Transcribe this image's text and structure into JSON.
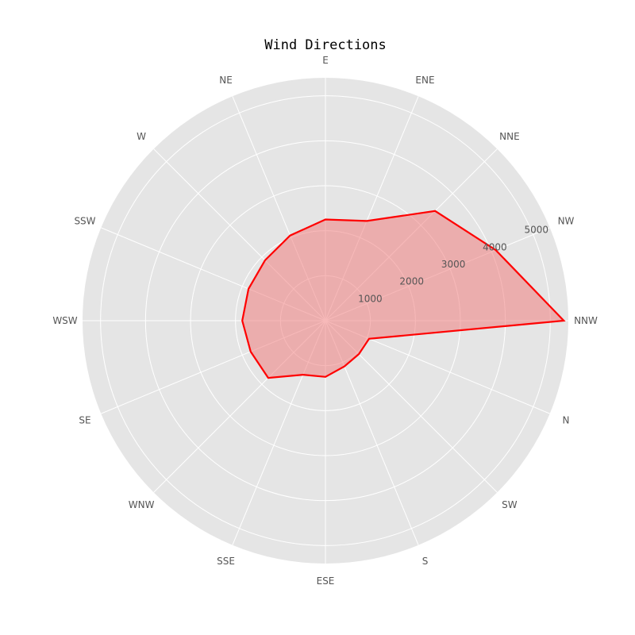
{
  "chart_data": {
    "type": "radar",
    "title": "Wind Directions",
    "categories": [
      "NNW",
      "NW",
      "NNE",
      "ENE",
      "E",
      "NE",
      "W",
      "SSW",
      "WSW",
      "SE",
      "WNW",
      "SSE",
      "ESE",
      "S",
      "SW",
      "N"
    ],
    "series": [
      {
        "values": [
          5300,
          4100,
          3450,
          2400,
          2250,
          2050,
          1900,
          1850,
          1850,
          1800,
          1800,
          1300,
          1250,
          1100,
          1050,
          1050
        ],
        "color": "#ff0000"
      }
    ],
    "rticks": [
      1000,
      2000,
      3000,
      4000,
      5000
    ],
    "rlim": [
      0,
      5400
    ],
    "grid": true,
    "background_color": "#e5e5e5",
    "fill_color": "#f08080"
  }
}
